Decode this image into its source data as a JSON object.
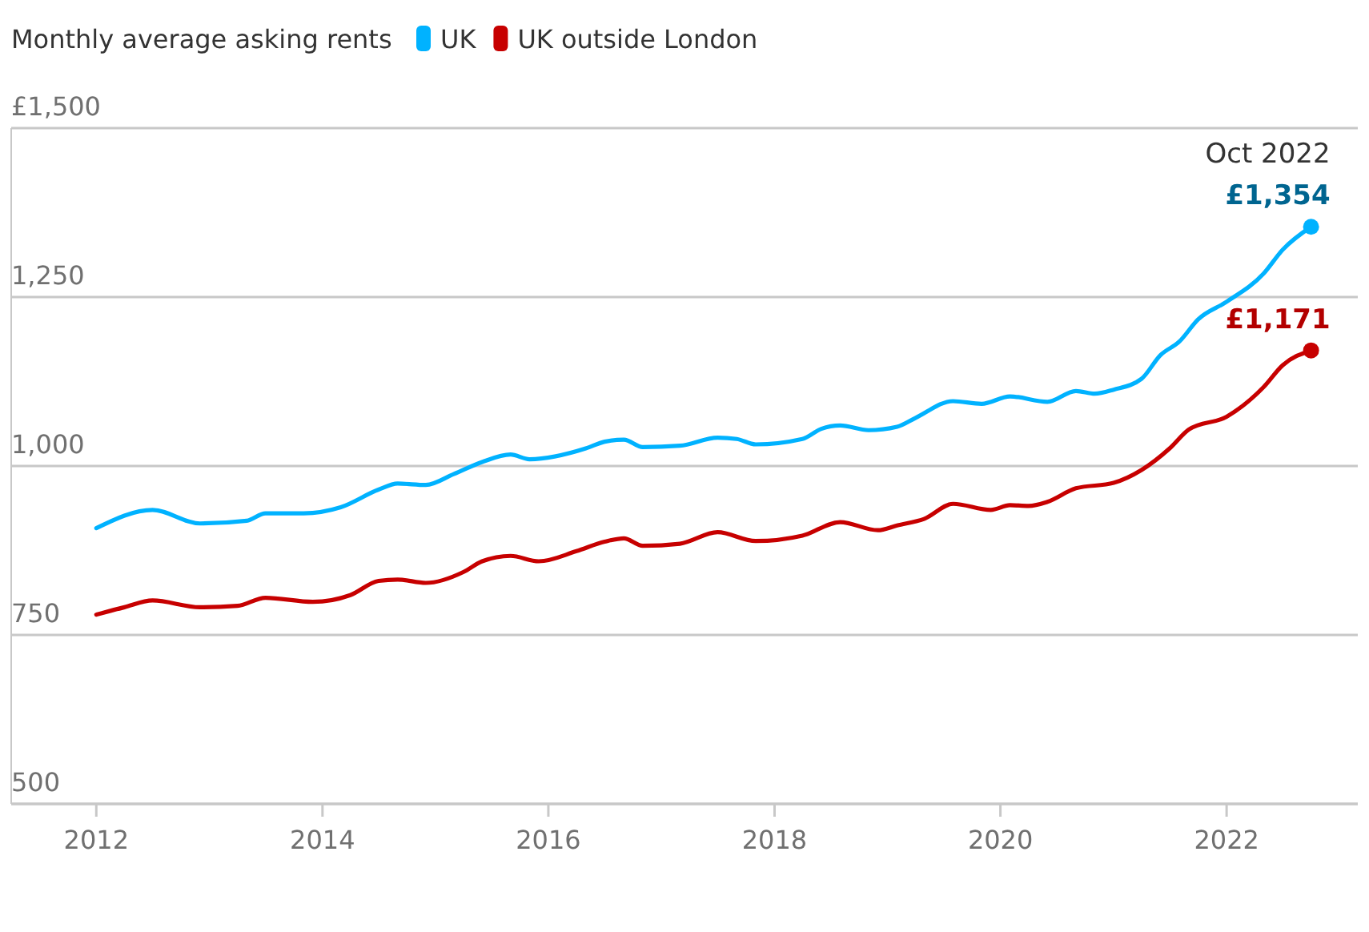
{
  "chart_data": {
    "type": "line",
    "title": "Monthly average asking rents",
    "xlim": [
      "2011-04",
      "2023-03"
    ],
    "xticks": [
      "2012",
      "2014",
      "2016",
      "2018",
      "2020",
      "2022"
    ],
    "ylim": [
      500,
      1500
    ],
    "yticks": [
      {
        "value": 500,
        "label": "500"
      },
      {
        "value": 750,
        "label": "750"
      },
      {
        "value": 1000,
        "label": "1,000"
      },
      {
        "value": 1250,
        "label": "1,250"
      },
      {
        "value": 1500,
        "label": "£1,500"
      }
    ],
    "grid": "y",
    "legend": "top",
    "line_style": "solid",
    "series": [
      {
        "name": "UK",
        "color": "#00b2ff",
        "x": [
          "2012-01",
          "2012-07",
          "2012-12",
          "2013-05",
          "2013-07",
          "2013-11",
          "2014-03",
          "2014-07",
          "2014-09",
          "2014-12",
          "2015-03",
          "2015-06",
          "2015-09",
          "2015-11",
          "2016-05",
          "2016-07",
          "2016-09",
          "2016-11",
          "2017-03",
          "2017-07",
          "2017-09",
          "2017-11",
          "2018-04",
          "2018-06",
          "2018-08",
          "2018-11",
          "2019-02",
          "2019-04",
          "2019-08",
          "2019-11",
          "2020-02",
          "2020-06",
          "2020-09",
          "2020-11",
          "2021-01",
          "2021-04",
          "2021-06",
          "2021-08",
          "2021-10",
          "2022-01",
          "2022-05",
          "2022-07",
          "2022-10"
        ],
        "values": [
          908,
          935,
          915,
          919,
          930,
          930,
          939,
          965,
          974,
          972,
          988,
          1006,
          1017,
          1010,
          1026,
          1036,
          1039,
          1028,
          1030,
          1042,
          1040,
          1032,
          1040,
          1055,
          1060,
          1053,
          1058,
          1071,
          1096,
          1092,
          1103,
          1095,
          1111,
          1107,
          1113,
          1129,
          1164,
          1184,
          1217,
          1243,
          1285,
          1320,
          1354
        ]
      },
      {
        "name": "UK outside London",
        "color": "#c70000",
        "x": [
          "2012-01",
          "2012-04",
          "2012-07",
          "2012-12",
          "2013-04",
          "2013-07",
          "2013-12",
          "2014-04",
          "2014-07",
          "2014-09",
          "2014-12",
          "2015-04",
          "2015-06",
          "2015-09",
          "2015-12",
          "2016-04",
          "2016-07",
          "2016-09",
          "2016-11",
          "2017-03",
          "2017-07",
          "2017-11",
          "2018-04",
          "2018-08",
          "2018-12",
          "2019-02",
          "2019-05",
          "2019-08",
          "2019-12",
          "2020-02",
          "2020-04",
          "2020-06",
          "2020-09",
          "2021-01",
          "2021-04",
          "2021-07",
          "2021-09",
          "2022-01",
          "2022-05",
          "2022-07",
          "2022-10"
        ],
        "values": [
          780,
          791,
          801,
          791,
          793,
          805,
          799,
          809,
          830,
          832,
          827,
          843,
          859,
          867,
          859,
          874,
          888,
          893,
          882,
          885,
          902,
          889,
          897,
          917,
          905,
          912,
          922,
          944,
          935,
          942,
          941,
          947,
          967,
          975,
          994,
          1026,
          1054,
          1073,
          1117,
          1149,
          1171
        ]
      },
      {
        "type": "scatter",
        "color": "#00b2ff",
        "marker": "circle",
        "x": [
          "2022-10"
        ],
        "values": [
          1354
        ],
        "value_labels": [
          "£1,354"
        ]
      },
      {
        "type": "scatter",
        "color": "#c70000",
        "marker": "circle",
        "x": [
          "2022-10"
        ],
        "values": [
          1171
        ],
        "value_labels": [
          "£1,171"
        ]
      }
    ],
    "annotations": [
      {
        "text": "Oct 2022",
        "x": "2022-10",
        "y": 1354
      }
    ]
  }
}
